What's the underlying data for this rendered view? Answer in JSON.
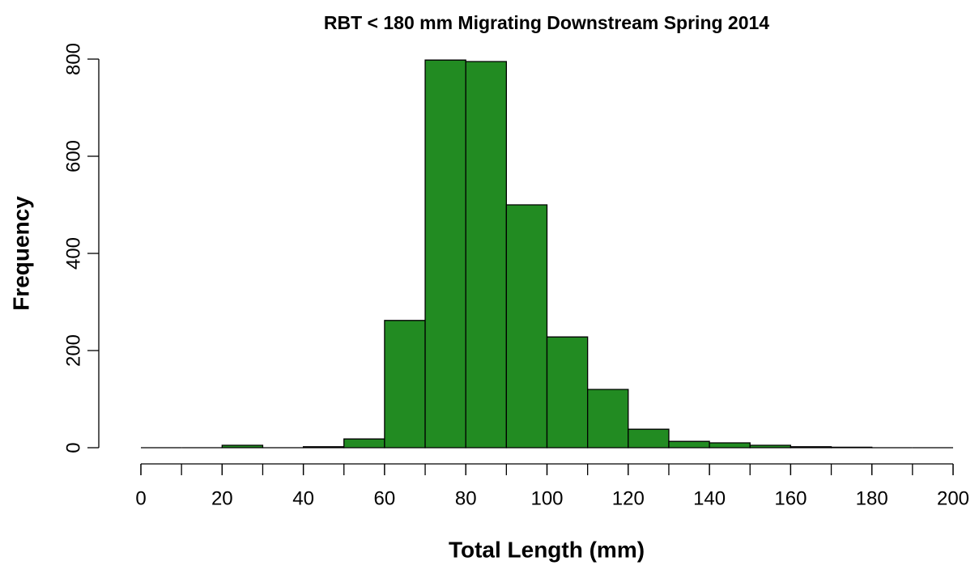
{
  "chart_data": {
    "type": "histogram",
    "title": "RBT < 180 mm Migrating Downstream Spring 2014",
    "x_label": "Total Length (mm)",
    "y_label": "Frequency",
    "bins": [
      0,
      10,
      20,
      30,
      40,
      50,
      60,
      70,
      80,
      90,
      100,
      110,
      120,
      130,
      140,
      150,
      160,
      170,
      180,
      190,
      200
    ],
    "values": [
      0,
      0,
      5,
      0,
      2,
      18,
      262,
      798,
      795,
      500,
      228,
      120,
      38,
      13,
      10,
      5,
      2,
      1,
      0,
      0
    ],
    "color": "#228b22",
    "xlim": [
      0,
      200
    ],
    "xticks": [
      0,
      20,
      40,
      60,
      80,
      100,
      120,
      140,
      160,
      180,
      200
    ],
    "ylim": [
      0,
      800
    ],
    "yticks": [
      0,
      200,
      400,
      600,
      800
    ]
  }
}
